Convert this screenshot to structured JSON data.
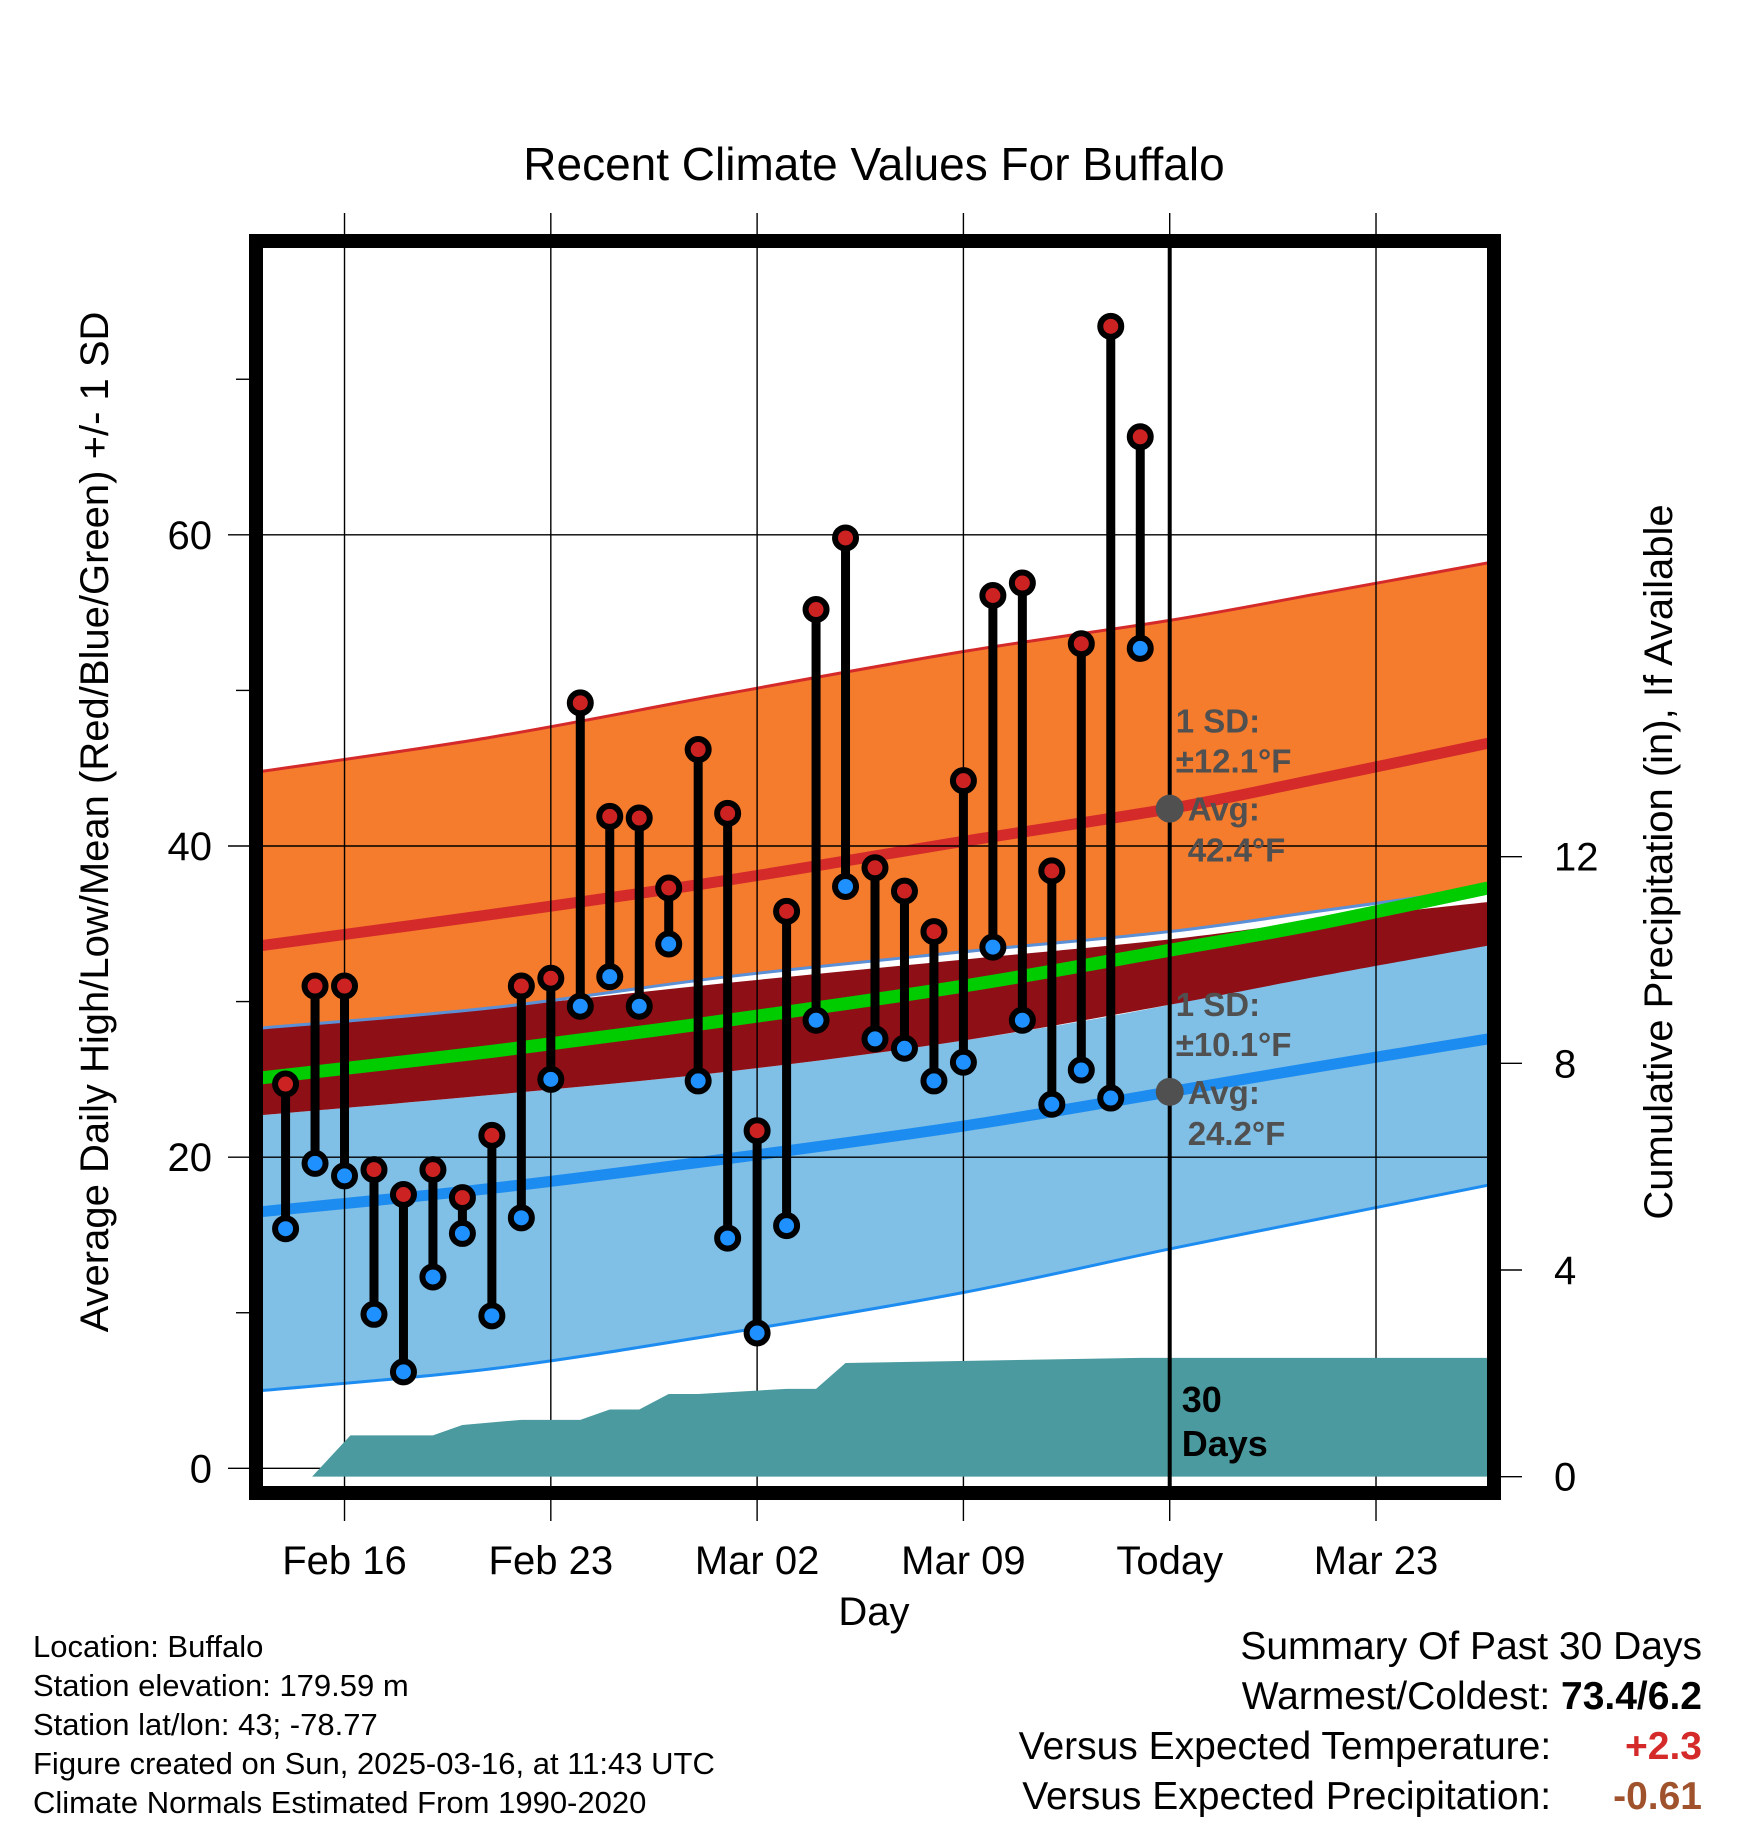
{
  "chart_data": {
    "type": "line",
    "title": "Recent Climate Values For Buffalo",
    "xlabel": "Day",
    "ylabel": "Average Daily High/Low/Mean (Red/Blue/Green) +/- 1 SD",
    "y2label": "Cumulative Precipitation (in), If Available",
    "xlim": [
      -2.8,
      38.8
    ],
    "ylim": [
      -1.2,
      78.5
    ],
    "y2lim": [
      -0.2,
      23.8
    ],
    "x_ticks": [
      {
        "x": 0,
        "label": "Feb 16"
      },
      {
        "x": 7,
        "label": "Feb 23"
      },
      {
        "x": 14,
        "label": "Mar 02"
      },
      {
        "x": 21,
        "label": "Mar 09"
      },
      {
        "x": 28,
        "label": "Today"
      },
      {
        "x": 35,
        "label": "Mar 23"
      }
    ],
    "y_ticks": [
      0,
      20,
      40,
      60
    ],
    "y_minor_ticks": [
      10,
      30,
      50,
      70
    ],
    "y2_ticks": [
      0,
      4,
      8,
      12
    ],
    "grid": true,
    "today_x": 28,
    "today_label": "30 Days",
    "normals": {
      "x": [
        -2.8,
        5,
        13,
        21,
        28,
        33,
        38.8
      ],
      "high_avg": [
        33.6,
        35.6,
        37.8,
        40.3,
        42.4,
        44.3,
        46.6
      ],
      "high_plus_sd": [
        44.8,
        47.0,
        49.8,
        52.5,
        54.5,
        56.2,
        58.2
      ],
      "low_avg": [
        16.5,
        18.0,
        19.9,
        22.0,
        24.2,
        25.8,
        27.6
      ],
      "low_minus_sd": [
        5.0,
        6.4,
        8.7,
        11.3,
        14.1,
        16.0,
        18.2
      ],
      "upper_sd_base": [
        28.3,
        29.6,
        31.6,
        33.2,
        34.5,
        35.8,
        37.3
      ],
      "dark_band_top": [
        28.3,
        29.6,
        31.2,
        32.7,
        34.0,
        35.2,
        36.4
      ],
      "dark_band_bottom": [
        22.7,
        24.0,
        25.5,
        27.5,
        29.8,
        31.6,
        33.6
      ],
      "mean_avg": [
        25.1,
        26.8,
        28.8,
        31.0,
        33.3,
        35.0,
        37.3
      ],
      "lower_sd_top": [
        22.7,
        24.0,
        25.5,
        27.5,
        29.8,
        32.2,
        34.8
      ]
    },
    "annotations": [
      {
        "x": 28,
        "y": 42.4,
        "sd_label": "1 SD:",
        "sd_value": "±12.1°F",
        "avg_label": "Avg:",
        "avg_value": "42.4°F"
      },
      {
        "x": 28,
        "y": 24.2,
        "sd_label": "1 SD:",
        "sd_value": "±10.1°F",
        "avg_label": "Avg:",
        "avg_value": "24.2°F"
      }
    ],
    "observations": [
      {
        "x": -2,
        "high": 24.7,
        "low": 15.4
      },
      {
        "x": -1,
        "high": 31.0,
        "low": 19.6
      },
      {
        "x": 0,
        "high": 31.0,
        "low": 18.8
      },
      {
        "x": 1,
        "high": 19.2,
        "low": 9.9
      },
      {
        "x": 2,
        "high": 17.6,
        "low": 6.2
      },
      {
        "x": 3,
        "high": 19.2,
        "low": 12.3
      },
      {
        "x": 4,
        "high": 17.4,
        "low": 15.1
      },
      {
        "x": 5,
        "high": 21.4,
        "low": 9.8
      },
      {
        "x": 6,
        "high": 31.0,
        "low": 16.1
      },
      {
        "x": 7,
        "high": 31.5,
        "low": 25.0
      },
      {
        "x": 8,
        "high": 49.2,
        "low": 29.7
      },
      {
        "x": 9,
        "high": 41.9,
        "low": 31.6
      },
      {
        "x": 10,
        "high": 41.8,
        "low": 29.7
      },
      {
        "x": 11,
        "high": 37.3,
        "low": 33.7
      },
      {
        "x": 12,
        "high": 46.2,
        "low": 24.9
      },
      {
        "x": 13,
        "high": 42.1,
        "low": 14.8
      },
      {
        "x": 14,
        "high": 21.7,
        "low": 8.7
      },
      {
        "x": 15,
        "high": 35.8,
        "low": 15.6
      },
      {
        "x": 16,
        "high": 55.2,
        "low": 28.8
      },
      {
        "x": 17,
        "high": 59.8,
        "low": 37.4
      },
      {
        "x": 18,
        "high": 38.6,
        "low": 27.6
      },
      {
        "x": 19,
        "high": 37.1,
        "low": 27.0
      },
      {
        "x": 20,
        "high": 34.5,
        "low": 24.9
      },
      {
        "x": 21,
        "high": 44.2,
        "low": 26.1
      },
      {
        "x": 22,
        "high": 56.1,
        "low": 33.5
      },
      {
        "x": 23,
        "high": 56.9,
        "low": 28.8
      },
      {
        "x": 24,
        "high": 38.4,
        "low": 23.4
      },
      {
        "x": 25,
        "high": 53.0,
        "low": 25.6
      },
      {
        "x": 26,
        "high": 73.4,
        "low": 23.8
      },
      {
        "x": 27,
        "high": 66.3,
        "low": 52.7
      }
    ],
    "precipitation": {
      "x": [
        -2.8,
        -1.1,
        0.2,
        3.0,
        4.0,
        6.0,
        8.0,
        9.0,
        10.0,
        11.0,
        12.0,
        15.0,
        16.0,
        17.0,
        27.0,
        38.8
      ],
      "y": [
        0,
        0,
        0.8,
        0.8,
        1.0,
        1.1,
        1.1,
        1.3,
        1.3,
        1.6,
        1.6,
        1.7,
        1.7,
        2.2,
        2.3,
        2.3
      ]
    },
    "colors": {
      "high_band": "#f57b2d",
      "high_line": "#d42a2a",
      "dark_band": "#8e1016",
      "mean_line": "#00cc00",
      "low_band": "#80bfe6",
      "low_line": "#1d8cf0",
      "precip": "#4a9a9f",
      "high_marker": "#cc2222",
      "low_marker": "#1e90ff",
      "annotation": "#505050"
    }
  },
  "info": {
    "location": "Location: Buffalo",
    "elevation": "Station elevation: 179.59 m",
    "latlon": "Station lat/lon: 43; -78.77",
    "created": "Figure created on Sun, 2025-03-16, at 11:43 UTC",
    "normals": "Climate Normals Estimated From 1990-2020"
  },
  "summary": {
    "heading": "Summary Of Past 30 Days",
    "warmest_label": "Warmest/Coldest:",
    "warmest_value": "73.4/6.2",
    "temp_label": "Versus Expected Temperature:",
    "temp_value": "+2.3",
    "temp_color": "#d42a2a",
    "precip_label": "Versus Expected Precipitation:",
    "precip_value": "-0.61",
    "precip_color": "#a0522d"
  }
}
